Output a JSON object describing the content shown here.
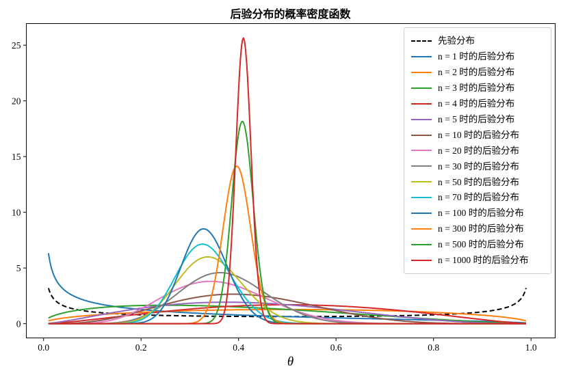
{
  "figure": {
    "title": "后验分布的概率密度函数",
    "xlabel": "θ"
  },
  "chart_data": {
    "type": "line",
    "title": "后验分布的概率密度函数",
    "xlabel": "θ",
    "ylabel": "",
    "xlim": [
      -0.0354,
      1.0496
    ],
    "ylim": [
      -1.28,
      26.94
    ],
    "xticks": [
      {
        "v": 0.0,
        "label": "0.0"
      },
      {
        "v": 0.2,
        "label": "0.2"
      },
      {
        "v": 0.4,
        "label": "0.4"
      },
      {
        "v": 0.6,
        "label": "0.6"
      },
      {
        "v": 0.8,
        "label": "0.8"
      },
      {
        "v": 1.0,
        "label": "1.0"
      }
    ],
    "yticks": [
      {
        "v": 0,
        "label": "0"
      },
      {
        "v": 5,
        "label": "5"
      },
      {
        "v": 10,
        "label": "10"
      },
      {
        "v": 15,
        "label": "15"
      },
      {
        "v": 20,
        "label": "20"
      },
      {
        "v": 25,
        "label": "25"
      }
    ],
    "grid": false,
    "legend_position": "upper right",
    "x_sample_range": [
      0.01,
      0.99
    ],
    "series": [
      {
        "label": "先验分布",
        "color": "#000000",
        "linestyle": "dashed",
        "distribution": "Beta",
        "alpha": 0.5,
        "beta": 0.5,
        "shape_note": "U-shaped: ≈3.2 at θ=0.01, min 0.64 at θ=0.5, ≈3.2 at θ=0.99"
      },
      {
        "label": "n = 1 时的后验分布",
        "color": "#1f77b4",
        "linestyle": "solid",
        "distribution": "Beta",
        "alpha": 0.5,
        "beta": 1.5,
        "shape_note": "decreasing from ≈6.3 at θ=0.01"
      },
      {
        "label": "n = 2 时的后验分布",
        "color": "#ff7f0e",
        "linestyle": "solid",
        "distribution": "Beta",
        "alpha": 1.5,
        "beta": 1.5,
        "peak_x": 0.5,
        "peak_y": 1.27
      },
      {
        "label": "n = 3 时的后验分布",
        "color": "#2ca02c",
        "linestyle": "solid",
        "distribution": "Beta",
        "alpha": 1.5,
        "beta": 2.5,
        "peak_x": 0.25,
        "peak_y": 1.65
      },
      {
        "label": "n = 4 时的后验分布",
        "color": "#d62728",
        "linestyle": "solid",
        "distribution": "Beta",
        "alpha": 2.5,
        "beta": 2.5,
        "peak_x": 0.5,
        "peak_y": 1.7
      },
      {
        "label": "n = 5 时的后验分布",
        "color": "#9467bd",
        "linestyle": "solid",
        "distribution": "Beta",
        "alpha": 2.5,
        "beta": 3.5,
        "peak_x": 0.375,
        "peak_y": 1.92
      },
      {
        "label": "n = 10 时的后验分布",
        "color": "#8c564b",
        "linestyle": "solid",
        "distribution": "Beta",
        "alpha": 4.5,
        "beta": 6.5,
        "peak_x": 0.39,
        "peak_y": 2.7
      },
      {
        "label": "n = 20 时的后验分布",
        "color": "#e377c2",
        "linestyle": "solid",
        "distribution": "Beta",
        "alpha": 7.5,
        "beta": 13.5,
        "peak_x": 0.34,
        "peak_y": 3.9
      },
      {
        "label": "n = 30 时的后验分布",
        "color": "#7f7f7f",
        "linestyle": "solid",
        "distribution": "Beta",
        "alpha": 11.5,
        "beta": 19.5,
        "peak_x": 0.36,
        "peak_y": 4.7
      },
      {
        "label": "n = 50 时的后验分布",
        "color": "#bcbd22",
        "linestyle": "solid",
        "distribution": "Beta",
        "alpha": 17.5,
        "beta": 33.5,
        "peak_x": 0.34,
        "peak_y": 6.0
      },
      {
        "label": "n = 70 时的后验分布",
        "color": "#17becf",
        "linestyle": "solid",
        "distribution": "Beta",
        "alpha": 23.5,
        "beta": 47.5,
        "peak_x": 0.33,
        "peak_y": 7.2
      },
      {
        "label": "n = 100 时的后验分布",
        "color": "#1f77b4",
        "linestyle": "solid",
        "distribution": "Beta",
        "alpha": 33.5,
        "beta": 67.5,
        "peak_x": 0.33,
        "peak_y": 8.5
      },
      {
        "label": "n = 300 时的后验分布",
        "color": "#ff7f0e",
        "linestyle": "solid",
        "distribution": "Beta",
        "alpha": 119.5,
        "beta": 181.5,
        "peak_x": 0.4,
        "peak_y": 14.1
      },
      {
        "label": "n = 500 时的后验分布",
        "color": "#2ca02c",
        "linestyle": "solid",
        "distribution": "Beta",
        "alpha": 204.5,
        "beta": 296.5,
        "peak_x": 0.41,
        "peak_y": 18.1
      },
      {
        "label": "n = 1000 时的后验分布",
        "color": "#d62728",
        "linestyle": "solid",
        "distribution": "Beta",
        "alpha": 410.5,
        "beta": 590.5,
        "peak_x": 0.41,
        "peak_y": 25.6
      }
    ]
  }
}
